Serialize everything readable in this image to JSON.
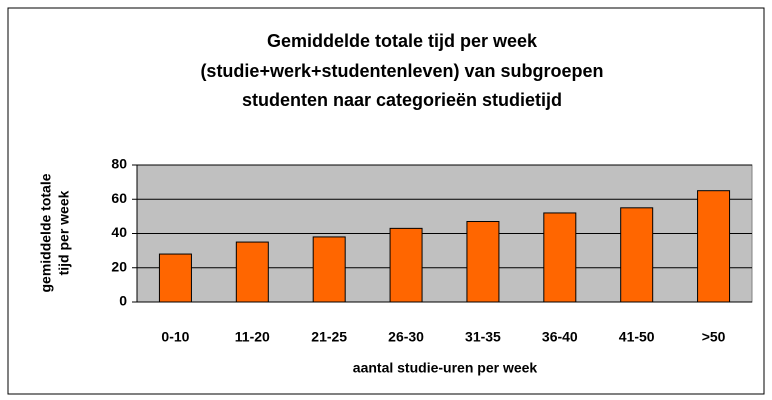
{
  "chart_data": {
    "type": "bar",
    "title": [
      "Gemiddelde totale tijd per week",
      "(studie+werk+studentenleven) van subgroepen",
      "studenten naar categorieën studietijd"
    ],
    "xlabel": "aantal studie-uren per week",
    "ylabel": [
      "gemiddelde totale",
      "tijd per week"
    ],
    "categories": [
      "0-10",
      "11-20",
      "21-25",
      "26-30",
      "31-35",
      "36-40",
      "41-50",
      ">50"
    ],
    "values": [
      28,
      35,
      38,
      43,
      47,
      52,
      55,
      65
    ],
    "color": "#ff6600",
    "ylim": [
      0,
      80
    ],
    "yticks": [
      0,
      20,
      40,
      60,
      80
    ],
    "grid": true
  }
}
